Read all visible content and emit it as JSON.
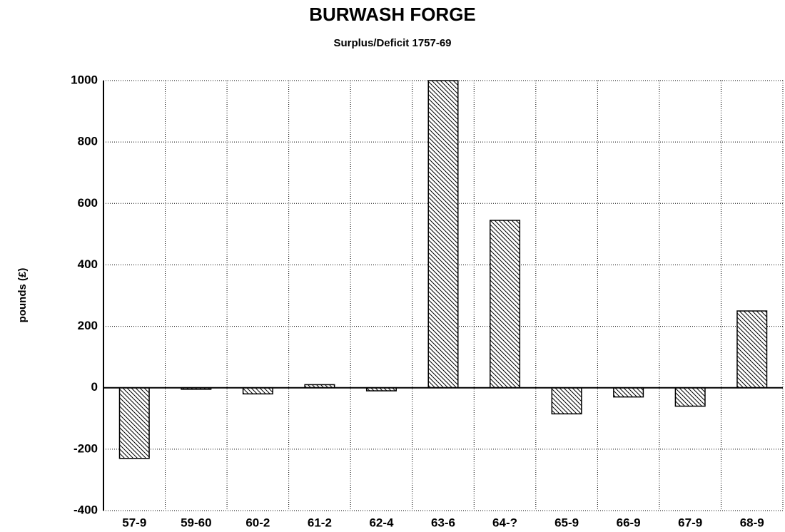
{
  "chart_data": {
    "type": "bar",
    "title": "BURWASH FORGE",
    "subtitle": "Surplus/Deficit 1757-69",
    "y_label": "pounds (£)",
    "categories": [
      "57-9",
      "59-60",
      "60-2",
      "61-2",
      "62-4",
      "63-6",
      "64-?",
      "65-9",
      "66-9",
      "67-9",
      "68-9"
    ],
    "values": [
      -230,
      -5,
      -20,
      10,
      -10,
      1000,
      545,
      -85,
      -30,
      -60,
      250
    ],
    "color": "#000000",
    "ylim": [
      -400,
      1000
    ],
    "yticks": [
      -400,
      -200,
      0,
      200,
      400,
      600,
      800,
      1000
    ],
    "grid": true
  }
}
